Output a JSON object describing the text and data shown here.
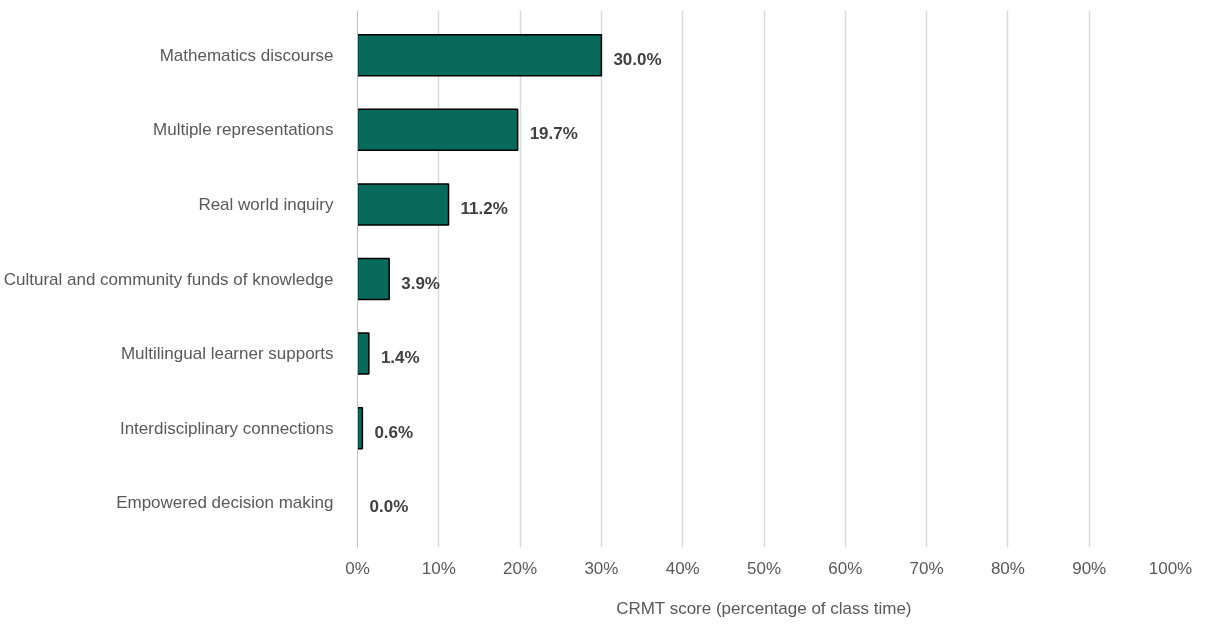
{
  "chart_data": {
    "type": "bar",
    "orientation": "horizontal",
    "xlabel": "CRMT score (percentage of class time)",
    "categories": [
      "Mathematics discourse",
      "Multiple representations",
      "Real world inquiry",
      "Cultural and community funds of knowledge",
      "Multilingual learner supports",
      "Interdisciplinary connections",
      "Empowered decision making"
    ],
    "values": [
      30.0,
      19.7,
      11.2,
      3.9,
      1.4,
      0.6,
      0.0
    ],
    "value_labels": [
      "30.0%",
      "19.7%",
      "11.2%",
      "3.9%",
      "1.4%",
      "0.6%",
      "0.0%"
    ],
    "color": "#086a5a",
    "xlim": [
      0,
      100
    ],
    "xticks": [
      {
        "value": 0,
        "label": "0%"
      },
      {
        "value": 10,
        "label": "10%"
      },
      {
        "value": 20,
        "label": "20%"
      },
      {
        "value": 30,
        "label": "30%"
      },
      {
        "value": 40,
        "label": "40%"
      },
      {
        "value": 50,
        "label": "50%"
      },
      {
        "value": 60,
        "label": "60%"
      },
      {
        "value": 70,
        "label": "70%"
      },
      {
        "value": 80,
        "label": "80%"
      },
      {
        "value": 90,
        "label": "90%"
      },
      {
        "value": 100,
        "label": "100%"
      }
    ],
    "grid": "x"
  }
}
